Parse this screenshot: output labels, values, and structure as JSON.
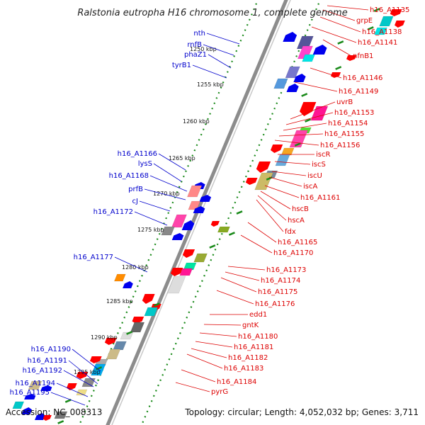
{
  "title": "Ralstonia eutropha H16 chromosome 1, complete genome",
  "footer": {
    "accession": "Accession: NC_008313",
    "topology": "Topology: circular; Length: 4,052,032 bp; Genes: 3,711"
  },
  "colors": {
    "left_labels": "#0000cc",
    "right_labels": "#dd0000",
    "backbone": "#8c8c8c",
    "dotted_track": "#1a8a1a"
  },
  "kbp_ticks": [
    "1250 kbp",
    "1255 kbp",
    "1260 kbp",
    "1265 kbp",
    "1270 kbp",
    "1275 kbp",
    "1280 kbp",
    "1285 kbp",
    "1290 kbp",
    "1295 kbp"
  ],
  "left_labels": [
    "nth",
    "rnfB",
    "phaZ1",
    "tyrB1",
    "h16_A1166",
    "lysS",
    "h16_A1168",
    "prfB",
    "cJ",
    "h16_A1172",
    "h16_A1177",
    "h16_A1190",
    "h16_A1191",
    "h16_A1192",
    "h16_A1194",
    "h16_A1195"
  ],
  "right_labels": [
    "h16_A1135",
    "grpE",
    "h16_A1138",
    "h16_A1141",
    "nfnB1",
    "h16_A1146",
    "h16_A1149",
    "uvrB",
    "h16_A1153",
    "h16_A1154",
    "h16_A1155",
    "h16_A1156",
    "iscR",
    "iscS",
    "iscU",
    "iscA",
    "h16_A1161",
    "hscB",
    "hscA",
    "fdx",
    "h16_A1165",
    "h16_A1170",
    "h16_A1173",
    "h16_A1174",
    "h16_A1175",
    "h16_A1176",
    "edd1",
    "gntK",
    "h16_A1180",
    "h16_A1181",
    "h16_A1182",
    "h16_A1183",
    "h16_A1184",
    "pyrG"
  ]
}
